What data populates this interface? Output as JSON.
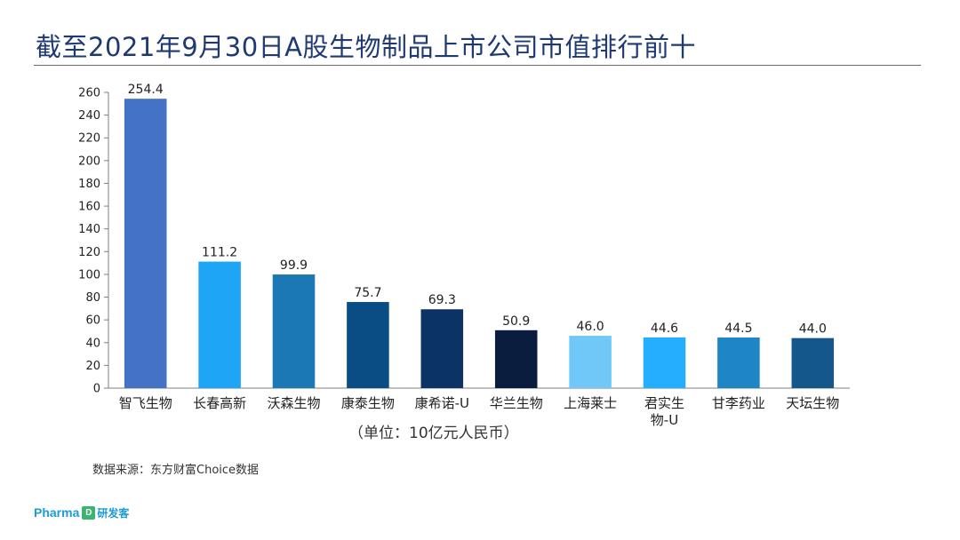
{
  "title": "截至2021年9月30日A股生物制品上市公司市值排行前十",
  "unit_note": "（单位：10亿元人民币）",
  "source": "数据来源：东方财富Choice数据",
  "logo": {
    "en": "Pharma",
    "box": "D",
    "cn": "研发客"
  },
  "chart_data": {
    "type": "bar",
    "title": "截至2021年9月30日A股生物制品上市公司市值排行前十",
    "ylabel": "",
    "xlabel": "（单位：10亿元人民币）",
    "ylim": [
      0,
      260
    ],
    "ytick_step": 20,
    "grid": false,
    "categories": [
      "智飞生物",
      "长春高新",
      "沃森生物",
      "康泰生物",
      "康希诺-U",
      "华兰生物",
      "上海莱士",
      "君实生物-U",
      "甘李药业",
      "天坛生物"
    ],
    "category_lines": [
      [
        "智飞生物"
      ],
      [
        "长春高新"
      ],
      [
        "沃森生物"
      ],
      [
        "康泰生物"
      ],
      [
        "康希诺-U"
      ],
      [
        "华兰生物"
      ],
      [
        "上海莱士"
      ],
      [
        "君实生",
        "物-U"
      ],
      [
        "甘李药业"
      ],
      [
        "天坛生物"
      ]
    ],
    "values": [
      254.4,
      111.2,
      99.9,
      75.7,
      69.3,
      50.9,
      46.0,
      44.6,
      44.5,
      44.0
    ],
    "value_labels": [
      "254.4",
      "111.2",
      "99.9",
      "75.7",
      "69.3",
      "50.9",
      "46.0",
      "44.6",
      "44.5",
      "44.0"
    ],
    "colors": [
      "#4472c4",
      "#1ea5f5",
      "#1b78b4",
      "#0a4c84",
      "#0c3366",
      "#0b1d3f",
      "#6fc8f7",
      "#25aefd",
      "#1f86c6",
      "#14578b"
    ]
  }
}
